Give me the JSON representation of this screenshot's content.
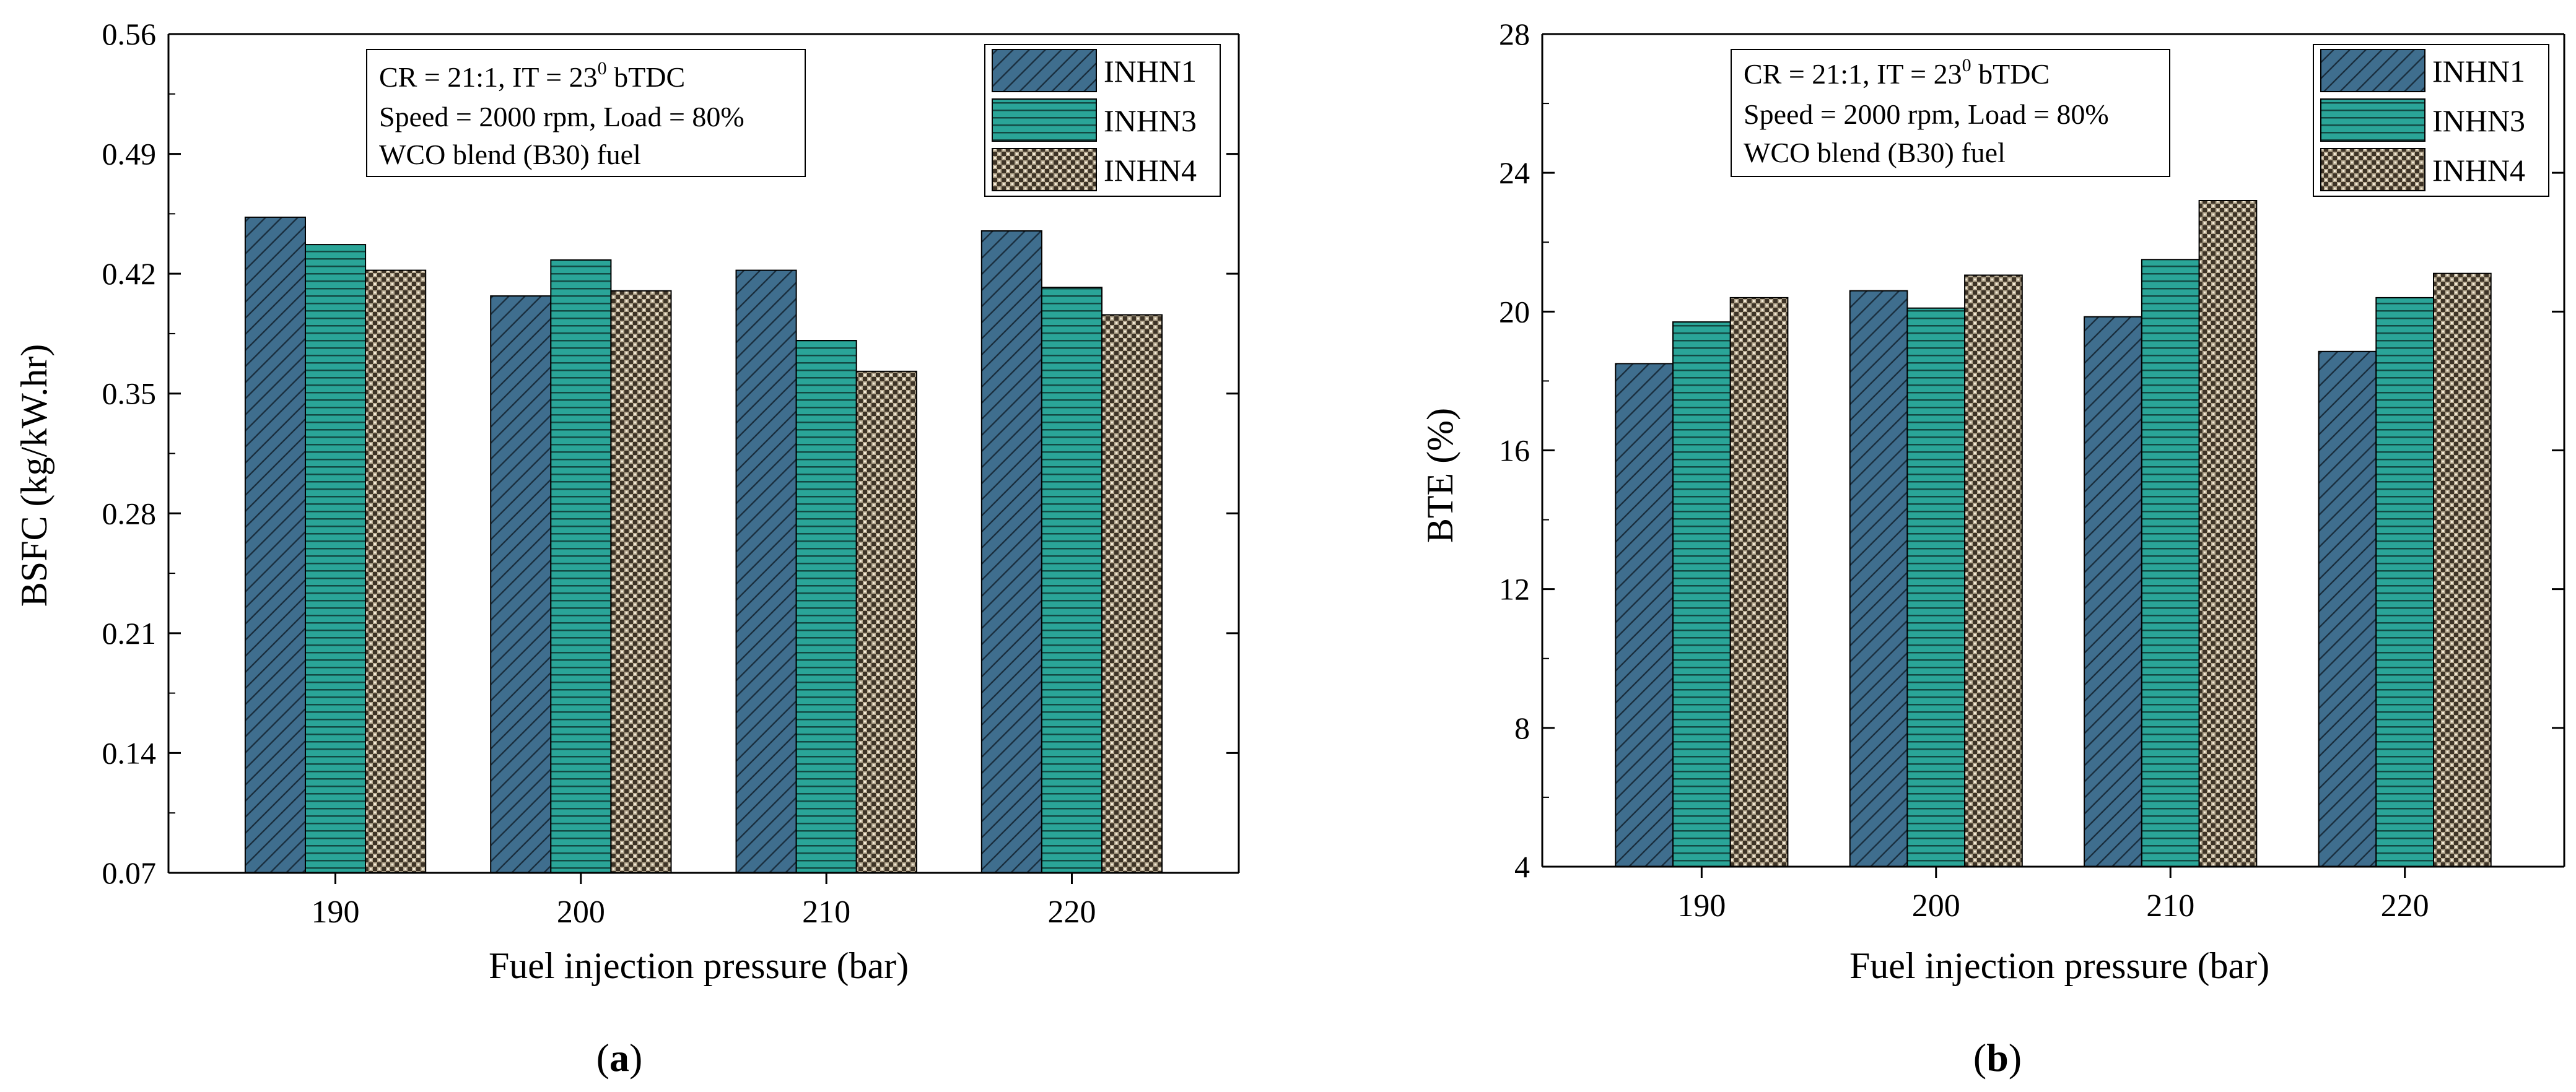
{
  "colors": {
    "INHN1": "#3f6e8e",
    "INHN3": "#2aa598",
    "INHN4": "#b8ab92",
    "axis": "#000000",
    "background": "#ffffff"
  },
  "chart_data": [
    {
      "type": "bar",
      "panel_label": "(a)",
      "panel_label_letter": "a",
      "categories": [
        "190",
        "200",
        "210",
        "220"
      ],
      "series": [
        {
          "name": "INHN1",
          "pattern": "diagonal-hatch",
          "values": [
            0.453,
            0.407,
            0.422,
            0.445
          ]
        },
        {
          "name": "INHN3",
          "pattern": "horizontal-lines",
          "values": [
            0.437,
            0.428,
            0.381,
            0.412
          ]
        },
        {
          "name": "INHN4",
          "pattern": "checker",
          "values": [
            0.422,
            0.41,
            0.363,
            0.396
          ]
        }
      ],
      "xlabel": "Fuel injection pressure (bar)",
      "ylabel": "BSFC (kg/kW.hr)",
      "ylim": [
        0.07,
        0.56
      ],
      "yticks": [
        "0.07",
        "0.14",
        "0.21",
        "0.28",
        "0.35",
        "0.42",
        "0.49",
        "0.56"
      ],
      "grid": false,
      "legend_position": "top-right",
      "annotation": {
        "line1_prefix": "CR = 21:1, IT = 23",
        "line1_sup": "0",
        "line1_suffix": " bTDC",
        "line2": "Speed = 2000 rpm, Load = 80%",
        "line3": "WCO blend (B30) fuel"
      }
    },
    {
      "type": "bar",
      "panel_label": "(b)",
      "panel_label_letter": "b",
      "categories": [
        "190",
        "200",
        "210",
        "220"
      ],
      "series": [
        {
          "name": "INHN1",
          "pattern": "diagonal-hatch",
          "values": [
            18.5,
            20.6,
            19.85,
            18.85
          ]
        },
        {
          "name": "INHN3",
          "pattern": "horizontal-lines",
          "values": [
            19.7,
            20.1,
            21.5,
            20.4
          ]
        },
        {
          "name": "INHN4",
          "pattern": "checker",
          "values": [
            20.4,
            21.05,
            23.2,
            21.1
          ]
        }
      ],
      "xlabel": "Fuel injection pressure (bar)",
      "ylabel": "BTE (%)",
      "ylim": [
        4,
        28
      ],
      "yticks": [
        "4",
        "8",
        "12",
        "16",
        "20",
        "24",
        "28"
      ],
      "grid": false,
      "legend_position": "top-right",
      "annotation": {
        "line1_prefix": "CR = 21:1, IT = 23",
        "line1_sup": "0",
        "line1_suffix": " bTDC",
        "line2": "Speed = 2000 rpm, Load = 80%",
        "line3": "WCO blend (B30) fuel"
      }
    }
  ]
}
